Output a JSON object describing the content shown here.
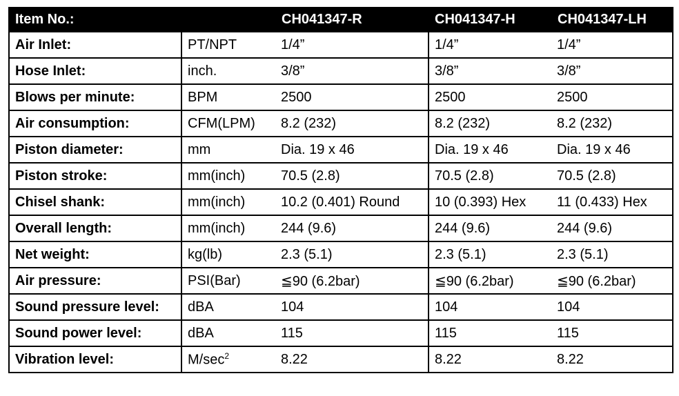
{
  "table": {
    "header": {
      "label": "Item No.:",
      "models": [
        "CH041347-R",
        "CH041347-H",
        "CH041347-LH"
      ]
    },
    "rows": [
      {
        "label": "Air Inlet:",
        "unit": "PT/NPT",
        "values": [
          "1/4”",
          "1/4”",
          "1/4”"
        ]
      },
      {
        "label": "Hose Inlet:",
        "unit": "inch.",
        "values": [
          "3/8”",
          "3/8”",
          "3/8”"
        ]
      },
      {
        "label": "Blows per minute:",
        "unit": "BPM",
        "values": [
          "2500",
          "2500",
          "2500"
        ]
      },
      {
        "label": "Air consumption:",
        "unit": "CFM(LPM)",
        "values": [
          "8.2 (232)",
          "8.2 (232)",
          "8.2 (232)"
        ]
      },
      {
        "label": "Piston diameter:",
        "unit": "mm",
        "values": [
          "Dia. 19 x 46",
          "Dia. 19 x 46",
          "Dia. 19 x 46"
        ]
      },
      {
        "label": "Piston stroke:",
        "unit": "mm(inch)",
        "values": [
          "70.5 (2.8)",
          "70.5 (2.8)",
          "70.5 (2.8)"
        ]
      },
      {
        "label": "Chisel shank:",
        "unit": "mm(inch)",
        "values": [
          "10.2 (0.401) Round",
          "10 (0.393) Hex",
          "11 (0.433) Hex"
        ]
      },
      {
        "label": "Overall length:",
        "unit": "mm(inch)",
        "values": [
          "244 (9.6)",
          "244 (9.6)",
          "244 (9.6)"
        ]
      },
      {
        "label": "Net weight:",
        "unit": "kg(lb)",
        "values": [
          "2.3 (5.1)",
          "2.3 (5.1)",
          "2.3 (5.1)"
        ]
      },
      {
        "label": "Air pressure:",
        "unit": "PSI(Bar)",
        "values": [
          "≦90 (6.2bar)",
          "≦90 (6.2bar)",
          "≦90 (6.2bar)"
        ]
      },
      {
        "label": "Sound pressure level:",
        "unit": "dBA",
        "values": [
          "104",
          "104",
          "104"
        ]
      },
      {
        "label": "Sound power level:",
        "unit": "dBA",
        "values": [
          "115",
          "115",
          "115"
        ]
      },
      {
        "label": "Vibration level:",
        "unit": "M/sec",
        "unit_superscript": "2",
        "values": [
          "8.22",
          "8.22",
          "8.22"
        ]
      }
    ]
  }
}
